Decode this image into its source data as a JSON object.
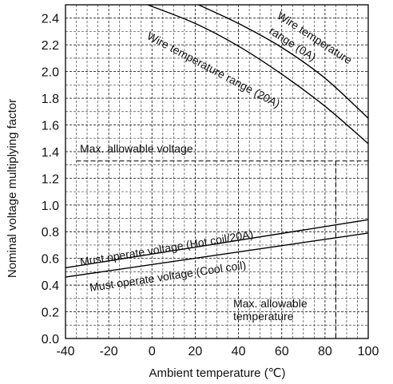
{
  "chart_data": {
    "type": "line",
    "xlabel": "Ambient temperature (℃)",
    "ylabel": "Nominal voltage multiplying factor",
    "xlim": [
      -40,
      100
    ],
    "ylim": [
      0.0,
      2.5
    ],
    "x_ticks": [
      -40,
      -20,
      0,
      20,
      40,
      60,
      80,
      100
    ],
    "x_tick_labels": [
      "-40",
      "-20",
      "0",
      "20",
      "40",
      "60",
      "80",
      "100"
    ],
    "y_ticks": [
      0.0,
      0.2,
      0.4,
      0.6,
      0.8,
      1.0,
      1.2,
      1.4,
      1.6,
      1.8,
      2.0,
      2.2,
      2.4
    ],
    "y_tick_labels": [
      "0.0",
      "0.2",
      "0.4",
      "0.6",
      "0.8",
      "1.0",
      "1.2",
      "1.4",
      "1.6",
      "1.8",
      "2.0",
      "2.2",
      "2.4"
    ],
    "grid": "dashed, every 5 on x and every 0.1 on y",
    "series": [
      {
        "name": "Wire temperature range (0A)",
        "x": [
          21.5,
          40,
          60,
          80,
          100
        ],
        "y": [
          2.5,
          2.36,
          2.18,
          1.95,
          1.65
        ]
      },
      {
        "name": "Wire temperature range (20A)",
        "x": [
          -2,
          20,
          40,
          60,
          80,
          100
        ],
        "y": [
          2.5,
          2.36,
          2.19,
          1.98,
          1.74,
          1.46
        ]
      },
      {
        "name": "Must operate voltage (Hot coil/20A)",
        "x": [
          -40,
          100
        ],
        "y": [
          0.53,
          0.89
        ]
      },
      {
        "name": "Must operate voltage (Cool coil)",
        "x": [
          -40,
          100
        ],
        "y": [
          0.46,
          0.79
        ]
      }
    ],
    "reference_lines": [
      {
        "label": "Max. allowable voltage",
        "orientation": "horizontal",
        "value": 1.33
      },
      {
        "label": "Max. allowable temperature",
        "orientation": "vertical",
        "value": 85
      }
    ]
  }
}
